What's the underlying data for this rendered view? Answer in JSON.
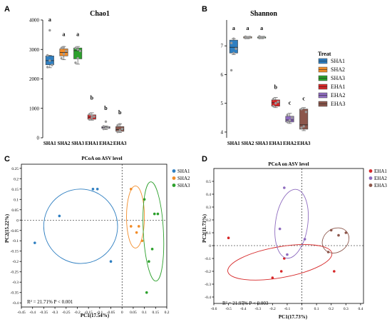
{
  "panels": {
    "A": {
      "letter": "A"
    },
    "B": {
      "letter": "B"
    },
    "C": {
      "letter": "C"
    },
    "D": {
      "letter": "D"
    }
  },
  "legend_b": {
    "title": "Treat"
  },
  "colors": {
    "SHA1": "#2f7fc1",
    "SHA2": "#f28c28",
    "SHA3": "#2ca02c",
    "EHA1": "#d62728",
    "EHA2": "#8e6bbf",
    "EHA3": "#8c564b"
  },
  "chart_data": [
    {
      "type": "box",
      "title": "Chao1",
      "categories": [
        "SHA1",
        "SHA2",
        "SHA3",
        "EHA1",
        "EHA2",
        "EHA3"
      ],
      "ylim": [
        0,
        4000
      ],
      "yticks": [
        "0",
        "1000",
        "2000",
        "3000",
        "4000"
      ],
      "yticks_values": [
        0,
        1000,
        2000,
        3000,
        4000
      ],
      "boxes": [
        {
          "min": 2380,
          "q1": 2480,
          "median": 2620,
          "q3": 2780,
          "max": 2800,
          "points": [
            2800,
            2620,
            2470,
            2400,
            3650
          ]
        },
        {
          "min": 2650,
          "q1": 2780,
          "median": 2900,
          "q3": 3020,
          "max": 3100,
          "points": [
            2700,
            2850,
            2950,
            3050,
            3080
          ]
        },
        {
          "min": 2500,
          "q1": 2680,
          "median": 2960,
          "q3": 3050,
          "max": 3100,
          "points": [
            2550,
            2700,
            2950,
            3050,
            3000
          ]
        },
        {
          "min": 600,
          "q1": 630,
          "median": 700,
          "q3": 780,
          "max": 850,
          "points": [
            620,
            680,
            720,
            800,
            760
          ]
        },
        {
          "min": 280,
          "q1": 320,
          "median": 350,
          "q3": 380,
          "max": 400,
          "points": [
            300,
            340,
            360,
            390,
            550
          ]
        },
        {
          "min": 180,
          "q1": 220,
          "median": 280,
          "q3": 380,
          "max": 470,
          "points": [
            200,
            250,
            300,
            420,
            460
          ]
        }
      ],
      "letters": [
        "a",
        "a",
        "a",
        "b",
        "b",
        "b"
      ],
      "letter_values": [
        3950,
        3450,
        3450,
        1300,
        950,
        800
      ]
    },
    {
      "type": "box",
      "title": "Shannon",
      "categories": [
        "SHA1",
        "SHA2",
        "SHA3",
        "EHA1",
        "EHA2",
        "EHA3"
      ],
      "ylim": [
        3.8,
        7.9
      ],
      "yticks": [
        "4",
        "5",
        "6",
        "7"
      ],
      "yticks_values": [
        4,
        5,
        6,
        7
      ],
      "boxes": [
        {
          "min": 6.7,
          "q1": 6.75,
          "median": 6.95,
          "q3": 7.2,
          "max": 7.25,
          "points": [
            6.15,
            6.75,
            6.9,
            7.1,
            7.25
          ]
        },
        {
          "min": 7.25,
          "q1": 7.27,
          "median": 7.3,
          "q3": 7.32,
          "max": 7.33,
          "points": [
            7.27,
            7.3,
            7.31,
            7.32
          ]
        },
        {
          "min": 7.25,
          "q1": 7.27,
          "median": 7.3,
          "q3": 7.31,
          "max": 7.33,
          "points": [
            7.27,
            7.29,
            7.31,
            7.33
          ]
        },
        {
          "min": 4.85,
          "q1": 4.9,
          "median": 5.02,
          "q3": 5.12,
          "max": 5.2,
          "points": [
            4.9,
            5.0,
            5.05,
            5.15
          ]
        },
        {
          "min": 4.3,
          "q1": 4.35,
          "median": 4.42,
          "q3": 4.55,
          "max": 4.65,
          "points": [
            4.35,
            4.4,
            4.5,
            4.6
          ]
        },
        {
          "min": 4.05,
          "q1": 4.1,
          "median": 4.25,
          "q3": 4.8,
          "max": 4.85,
          "points": [
            4.15,
            4.2,
            4.7,
            4.8
          ]
        }
      ],
      "letters": [
        "a",
        "a",
        "a",
        "b",
        "c",
        "c"
      ],
      "letter_values": [
        7.55,
        7.55,
        7.55,
        5.5,
        4.95,
        5.1
      ],
      "legend": [
        "SHA1",
        "SHA2",
        "SHA3",
        "EHA1",
        "EHA2",
        "EHA3"
      ]
    },
    {
      "type": "scatter",
      "title": "PCoA  on  ASV level",
      "xlabel": "PC1(17.54%)",
      "ylabel": "PC2(15.22%)",
      "xlim": [
        -0.45,
        0.2
      ],
      "ylim": [
        -0.42,
        0.27
      ],
      "xticks": [
        "-0.45",
        "-0.4",
        "-0.35",
        "-0.3",
        "-0.25",
        "-0.2",
        "-0.15",
        "-0.1",
        "-0.05",
        "0",
        "0.05",
        "0.1",
        "0.15",
        "0.2"
      ],
      "xticks_values": [
        -0.45,
        -0.4,
        -0.35,
        -0.3,
        -0.25,
        -0.2,
        -0.15,
        -0.1,
        -0.05,
        0,
        0.05,
        0.1,
        0.15,
        0.2
      ],
      "yticks": [
        "-0.4",
        "-0.35",
        "-0.3",
        "-0.25",
        "-0.2",
        "-0.15",
        "-0.1",
        "-0.05",
        "0",
        "0.05",
        "0.1",
        "0.15",
        "0.2",
        "0.25"
      ],
      "yticks_values": [
        -0.4,
        -0.35,
        -0.3,
        -0.25,
        -0.2,
        -0.15,
        -0.1,
        -0.05,
        0,
        0.05,
        0.1,
        0.15,
        0.2,
        0.25
      ],
      "annotation": "R² = 21.71%  P < 0.001",
      "series": [
        {
          "name": "SHA1",
          "points": [
            [
              -0.13,
              0.15
            ],
            [
              -0.11,
              0.15
            ],
            [
              -0.28,
              0.02
            ],
            [
              -0.39,
              -0.11
            ],
            [
              -0.05,
              -0.2
            ]
          ],
          "ellipse": {
            "cx": -0.185,
            "cy": -0.03,
            "rx": 0.165,
            "ry": 0.18,
            "angle": -15
          }
        },
        {
          "name": "SHA2",
          "points": [
            [
              0.04,
              0.15
            ],
            [
              0.04,
              -0.03
            ],
            [
              0.065,
              -0.06
            ],
            [
              0.075,
              -0.03
            ],
            [
              0.09,
              -0.1
            ]
          ],
          "ellipse": {
            "cx": 0.06,
            "cy": 0.015,
            "rx": 0.04,
            "ry": 0.15,
            "angle": 0
          }
        },
        {
          "name": "SHA3",
          "points": [
            [
              0.1,
              0.1
            ],
            [
              0.145,
              0.03
            ],
            [
              0.16,
              0.03
            ],
            [
              0.135,
              -0.14
            ],
            [
              0.12,
              -0.2
            ],
            [
              0.11,
              -0.35
            ]
          ],
          "ellipse": {
            "cx": 0.14,
            "cy": -0.055,
            "rx": 0.045,
            "ry": 0.24,
            "angle": -3
          }
        }
      ]
    },
    {
      "type": "scatter",
      "title": "PCoA  on  ASV level",
      "xlabel": "PC1(17.73%)",
      "ylabel": "PC2(11.73%)",
      "xlim": [
        -0.6,
        0.42
      ],
      "ylim": [
        -0.45,
        0.6
      ],
      "xticks": [
        "-0.6",
        "-0.5",
        "-0.4",
        "-0.3",
        "-0.2",
        "-0.1",
        "0",
        "0.1",
        "0.2",
        "0.3",
        "0.4"
      ],
      "xticks_values": [
        -0.6,
        -0.5,
        -0.4,
        -0.3,
        -0.2,
        -0.1,
        0,
        0.1,
        0.2,
        0.3,
        0.4
      ],
      "yticks": [
        "-0.4",
        "-0.3",
        "-0.2",
        "-0.1",
        "0",
        "0.1",
        "0.2",
        "0.3",
        "0.4",
        "0.5"
      ],
      "yticks_values": [
        -0.4,
        -0.3,
        -0.2,
        -0.1,
        0,
        0.1,
        0.2,
        0.3,
        0.4,
        0.5
      ],
      "annotation": "R² = 21.97%  P < 0.003",
      "series": [
        {
          "name": "EHA1",
          "points": [
            [
              -0.5,
              0.06
            ],
            [
              -0.12,
              -0.1
            ],
            [
              -0.14,
              -0.2
            ],
            [
              -0.2,
              -0.25
            ],
            [
              0.22,
              -0.2
            ]
          ],
          "ellipse": {
            "cx": -0.15,
            "cy": -0.13,
            "rx": 0.36,
            "ry": 0.12,
            "angle": -10
          }
        },
        {
          "name": "EHA2",
          "points": [
            [
              -0.12,
              0.45
            ],
            [
              -0.15,
              0.13
            ],
            [
              -0.1,
              -0.07
            ],
            [
              0.02,
              0.05
            ]
          ],
          "ellipse": {
            "cx": -0.07,
            "cy": 0.17,
            "rx": 0.11,
            "ry": 0.27,
            "angle": 8
          }
        },
        {
          "name": "EHA3",
          "points": [
            [
              0.2,
              0.12
            ],
            [
              0.25,
              0.08
            ],
            [
              0.3,
              0.1
            ],
            [
              0.18,
              -0.05
            ]
          ],
          "ellipse": {
            "cx": 0.23,
            "cy": 0.04,
            "rx": 0.08,
            "ry": 0.11,
            "angle": 55
          }
        }
      ]
    }
  ]
}
